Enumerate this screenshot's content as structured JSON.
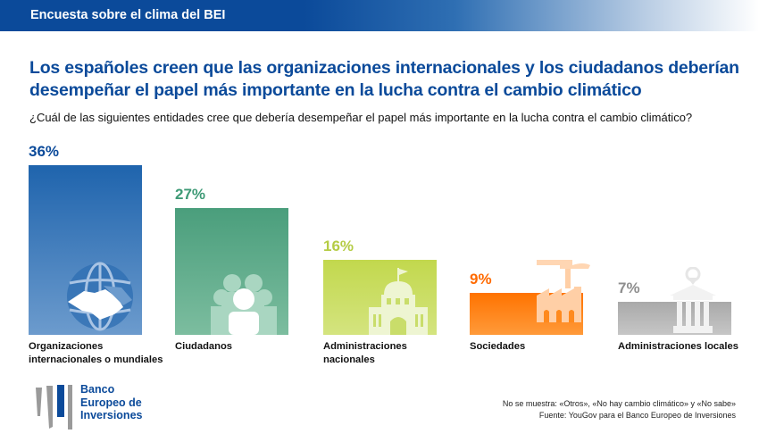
{
  "header": {
    "title": "Encuesta sobre el clima del BEI"
  },
  "main_title": "Los españoles creen que las organizaciones internacionales y los ciudadanos deberían desempeñar el papel más importante en la lucha contra el cambio climático",
  "question": "¿Cuál de las siguientes entidades cree que debería desempeñar el papel más importante en la lucha contra el cambio climático?",
  "chart_data": {
    "type": "bar",
    "title": "Los españoles creen que las organizaciones internacionales y los ciudadanos deberían desempeñar el papel más importante en la lucha contra el cambio climático",
    "subtitle": "¿Cuál de las siguientes entidades cree que debería desempeñar el papel más importante en la lucha contra el cambio climático?",
    "xlabel": "",
    "ylabel": "",
    "ylim": [
      0,
      36
    ],
    "grid": false,
    "categories": [
      "Organizaciones internacionales o mundiales",
      "Ciudadanos",
      "Administraciones nacionales",
      "Sociedades",
      "Administraciones locales"
    ],
    "values": [
      36,
      27,
      16,
      9,
      7
    ],
    "labels": [
      "36%",
      "27%",
      "16%",
      "9%",
      "7%"
    ],
    "colors": [
      {
        "top": "#1f64ad",
        "bottom": "#6c9bcd",
        "label": "#0b4a9a"
      },
      {
        "top": "#4a9e7c",
        "bottom": "#7cbd9f",
        "label": "#3e9a76"
      },
      {
        "top": "#c2d84d",
        "bottom": "#d4e47f",
        "label": "#b5cc45"
      },
      {
        "top": "#ff7300",
        "bottom": "#ff9a3a",
        "label": "#ff6a00"
      },
      {
        "top": "#a9a9a9",
        "bottom": "#c6c6c6",
        "label": "#8e8e8e"
      }
    ],
    "icons": [
      "globe-handshake-icon",
      "people-group-icon",
      "capitol-building-icon",
      "factory-icon",
      "town-hall-pin-icon"
    ]
  },
  "category_lines": [
    [
      "Organizaciones",
      "internacionales o mundiales"
    ],
    [
      "Ciudadanos"
    ],
    [
      "Administraciones",
      "nacionales"
    ],
    [
      "Sociedades"
    ],
    [
      "Administraciones locales"
    ]
  ],
  "footer": {
    "note": "No se muestra: «Otros», «No hay cambio climático» y «No sabe»",
    "source": "Fuente: YouGov para el Banco Europeo de Inversiones"
  },
  "logo": {
    "lines": [
      "Banco",
      "Europeo de",
      "Inversiones"
    ]
  }
}
